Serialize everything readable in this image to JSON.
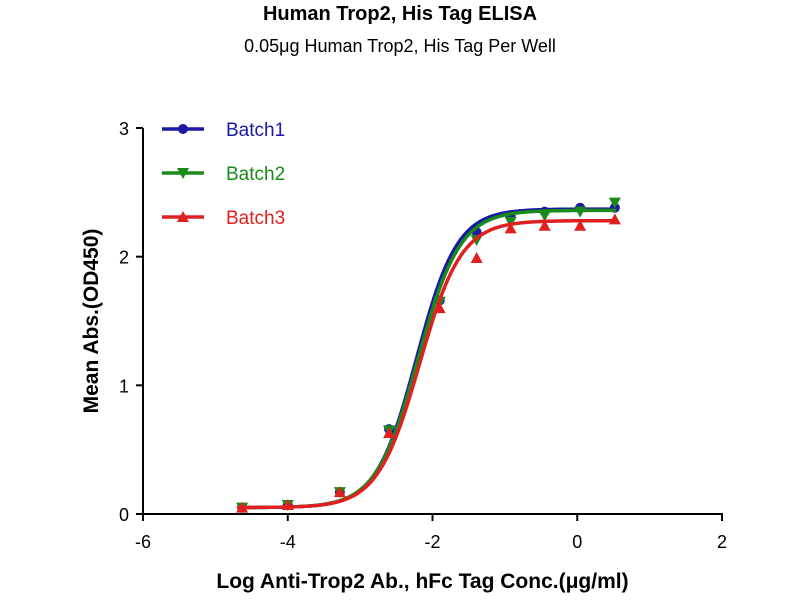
{
  "chart_data": {
    "type": "line",
    "title": "Human Trop2, His Tag ELISA",
    "subtitle": "0.05μg Human Trop2, His Tag Per Well",
    "xlabel": "Log Anti-Trop2 Ab., hFc Tag Conc.(μg/ml)",
    "ylabel": "Mean Abs.(OD450)",
    "xlim": [
      -6,
      2
    ],
    "ylim": [
      0,
      3
    ],
    "xticks": [
      "-6",
      "-4",
      "-2",
      "0",
      "2"
    ],
    "yticks": [
      "0",
      "1",
      "2",
      "3"
    ],
    "legend_position": "top-left",
    "x": [
      -4.63,
      -4.0,
      -3.28,
      -2.6,
      -1.9,
      -1.39,
      -0.92,
      -0.45,
      0.04,
      0.52
    ],
    "series": [
      {
        "name": "Batch1",
        "color": "#1a1aa6",
        "marker": "circle",
        "values": [
          0.05,
          0.07,
          0.17,
          0.66,
          1.66,
          2.19,
          2.32,
          2.35,
          2.38,
          2.38
        ],
        "fit": {
          "bottom": 0.05,
          "top": 2.37,
          "logEC50": -2.22,
          "hill": 1.55
        }
      },
      {
        "name": "Batch2",
        "color": "#1a8a1a",
        "marker": "triangle-down",
        "values": [
          0.05,
          0.07,
          0.17,
          0.65,
          1.65,
          2.13,
          2.27,
          2.32,
          2.35,
          2.42
        ],
        "fit": {
          "bottom": 0.05,
          "top": 2.36,
          "logEC50": -2.2,
          "hill": 1.5
        }
      },
      {
        "name": "Batch3",
        "color": "#e02020",
        "marker": "triangle-up",
        "values": [
          0.05,
          0.07,
          0.17,
          0.63,
          1.6,
          1.99,
          2.22,
          2.24,
          2.24,
          2.29
        ],
        "fit": {
          "bottom": 0.05,
          "top": 2.28,
          "logEC50": -2.18,
          "hill": 1.5
        }
      }
    ]
  }
}
